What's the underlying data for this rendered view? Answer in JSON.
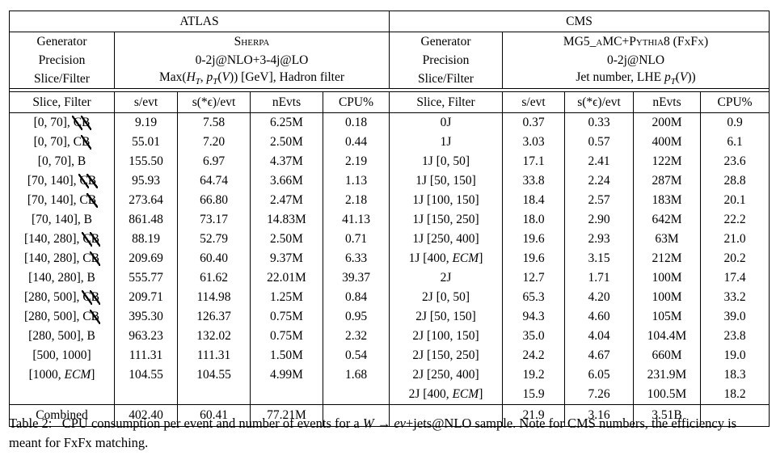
{
  "table": {
    "atlas": {
      "experiment": "ATLAS",
      "meta": {
        "generator_label": "Generator",
        "generator": "Sherpa",
        "precision_label": "Precision",
        "precision": "0-2j@NLO+3-4j@LO",
        "slice_filter_label": "Slice/Filter",
        "slice_filter_html": "Max(<i>H<sub>T</sub></i>, <i>p<sub>T</sub></i>(<i>V</i>)) [GeV], Hadron filter"
      },
      "columns": [
        "Slice, Filter",
        "s/evt",
        "s(*ϵ)/evt",
        "nEvts",
        "CPU%"
      ],
      "rows": [
        {
          "label": "[0, 70], <span class='cx'>C</span><span class='cx'>B</span>",
          "s": "9.19",
          "se": "7.58",
          "n": "6.25M",
          "cpu": "0.18"
        },
        {
          "label": "[0, 70], C<span class='cx'>B</span>",
          "s": "55.01",
          "se": "7.20",
          "n": "2.50M",
          "cpu": "0.44"
        },
        {
          "label": "[0, 70], B",
          "s": "155.50",
          "se": "6.97",
          "n": "4.37M",
          "cpu": "2.19"
        },
        {
          "label": "[70, 140], <span class='cx'>C</span><span class='cx'>B</span>",
          "s": "95.93",
          "se": "64.74",
          "n": "3.66M",
          "cpu": "1.13"
        },
        {
          "label": "[70, 140], C<span class='cx'>B</span>",
          "s": "273.64",
          "se": "66.80",
          "n": "2.47M",
          "cpu": "2.18"
        },
        {
          "label": "[70, 140], B",
          "s": "861.48",
          "se": "73.17",
          "n": "14.83M",
          "cpu": "41.13"
        },
        {
          "label": "[140, 280], <span class='cx'>C</span><span class='cx'>B</span>",
          "s": "88.19",
          "se": "52.79",
          "n": "2.50M",
          "cpu": "0.71"
        },
        {
          "label": "[140, 280], C<span class='cx'>B</span>",
          "s": "209.69",
          "se": "60.40",
          "n": "9.37M",
          "cpu": "6.33"
        },
        {
          "label": "[140, 280], B",
          "s": "555.77",
          "se": "61.62",
          "n": "22.01M",
          "cpu": "39.37"
        },
        {
          "label": "[280, 500], <span class='cx'>C</span><span class='cx'>B</span>",
          "s": "209.71",
          "se": "114.98",
          "n": "1.25M",
          "cpu": "0.84"
        },
        {
          "label": "[280, 500], C<span class='cx'>B</span>",
          "s": "395.30",
          "se": "126.37",
          "n": "0.75M",
          "cpu": "0.95"
        },
        {
          "label": "[280, 500], B",
          "s": "963.23",
          "se": "132.02",
          "n": "0.75M",
          "cpu": "2.32"
        },
        {
          "label": "[500, 1000]",
          "s": "111.31",
          "se": "111.31",
          "n": "1.50M",
          "cpu": "0.54"
        },
        {
          "label": "[1000, <i>ECM</i>]",
          "s": "104.55",
          "se": "104.55",
          "n": "4.99M",
          "cpu": "1.68"
        }
      ],
      "combined": {
        "label": "Combined",
        "s": "402.40",
        "se": "60.41",
        "n": "77.21M",
        "cpu": ""
      }
    },
    "cms": {
      "experiment": "CMS",
      "meta": {
        "generator_label": "Generator",
        "generator": "MG5_aMC+Pythia8 (FxFx)",
        "precision_label": "Precision",
        "precision": "0-2j@NLO",
        "slice_filter_label": "Slice/Filter",
        "slice_filter_html": "Jet number, LHE <i>p<sub>T</sub></i>(<i>V</i>))"
      },
      "columns": [
        "Slice, Filter",
        "s/evt",
        "s(*ϵ)/evt",
        "nEvts",
        "CPU%"
      ],
      "rows": [
        {
          "label": "0J",
          "s": "0.37",
          "se": "0.33",
          "n": "200M",
          "cpu": "0.9"
        },
        {
          "label": "1J",
          "s": "3.03",
          "se": "0.57",
          "n": "400M",
          "cpu": "6.1"
        },
        {
          "label": "1J [0, 50]",
          "s": "17.1",
          "se": "2.41",
          "n": "122M",
          "cpu": "23.6"
        },
        {
          "label": "1J [50, 150]",
          "s": "33.8",
          "se": "2.24",
          "n": "287M",
          "cpu": "28.8"
        },
        {
          "label": "1J [100, 150]",
          "s": "18.4",
          "se": "2.57",
          "n": "183M",
          "cpu": "20.1"
        },
        {
          "label": "1J [150, 250]",
          "s": "18.0",
          "se": "2.90",
          "n": "642M",
          "cpu": "22.2"
        },
        {
          "label": "1J [250, 400]",
          "s": "19.6",
          "se": "2.93",
          "n": "63M",
          "cpu": "21.0"
        },
        {
          "label": "1J [400, <i>ECM</i>]",
          "s": "19.6",
          "se": "3.15",
          "n": "212M",
          "cpu": "20.2"
        },
        {
          "label": "2J",
          "s": "12.7",
          "se": "1.71",
          "n": "100M",
          "cpu": "17.4"
        },
        {
          "label": "2J [0, 50]",
          "s": "65.3",
          "se": "4.20",
          "n": "100M",
          "cpu": "33.2"
        },
        {
          "label": "2J [50, 150]",
          "s": "94.3",
          "se": "4.60",
          "n": "105M",
          "cpu": "39.0"
        },
        {
          "label": "2J [100, 150]",
          "s": "35.0",
          "se": "4.04",
          "n": "104.4M",
          "cpu": "23.8"
        },
        {
          "label": "2J [150, 250]",
          "s": "24.2",
          "se": "4.67",
          "n": "660M",
          "cpu": "19.0"
        },
        {
          "label": "2J [250, 400]",
          "s": "19.2",
          "se": "6.05",
          "n": "231.9M",
          "cpu": "18.3"
        },
        {
          "label": "2J [400, <i>ECM</i>]",
          "s": "15.9",
          "se": "7.26",
          "n": "100.5M",
          "cpu": "18.2"
        }
      ],
      "combined": {
        "label": "",
        "s": "21.9",
        "se": "3.16",
        "n": "3.51B",
        "cpu": ""
      }
    }
  },
  "caption_html": "Table 2:&nbsp;&nbsp; CPU consumption per event and number of events for a <i>W</i> → <i>eν</i>+jets@NLO sample. Note for CMS numbers, the efficiency is meant for FxFx matching."
}
